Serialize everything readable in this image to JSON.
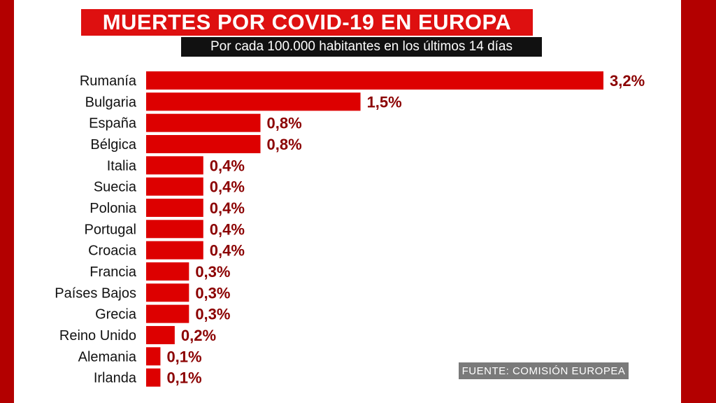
{
  "header": {
    "title": "MUERTES POR COVID-19 EN EUROPA",
    "subtitle": "Por cada 100.000 habitantes en los últimos 14 días"
  },
  "source": "FUENTE: COMISIÓN EUROPEA",
  "colors": {
    "bar": "#dd0000",
    "value_label": "#8b0000",
    "frame": "#b30000",
    "title_bg": "#de1010",
    "subtitle_bg": "#111111"
  },
  "chart_data": {
    "type": "bar",
    "orientation": "horizontal",
    "title": "MUERTES POR COVID-19 EN EUROPA",
    "subtitle": "Por cada 100.000 habitantes en los últimos 14 días",
    "categories": [
      "Rumanía",
      "Bulgaria",
      "España",
      "Bélgica",
      "Italia",
      "Suecia",
      "Polonia",
      "Portugal",
      "Croacia",
      "Francia",
      "Países Bajos",
      "Grecia",
      "Reino Unido",
      "Alemania",
      "Irlanda"
    ],
    "values": [
      3.2,
      1.5,
      0.8,
      0.8,
      0.4,
      0.4,
      0.4,
      0.4,
      0.4,
      0.3,
      0.3,
      0.3,
      0.2,
      0.1,
      0.1
    ],
    "value_labels": [
      "3,2%",
      "1,5%",
      "0,8%",
      "0,8%",
      "0,4%",
      "0,4%",
      "0,4%",
      "0,4%",
      "0,4%",
      "0,3%",
      "0,3%",
      "0,3%",
      "0,2%",
      "0,1%",
      "0,1%"
    ],
    "xlim": [
      0,
      3.2
    ],
    "grid": false,
    "legend": "none"
  }
}
